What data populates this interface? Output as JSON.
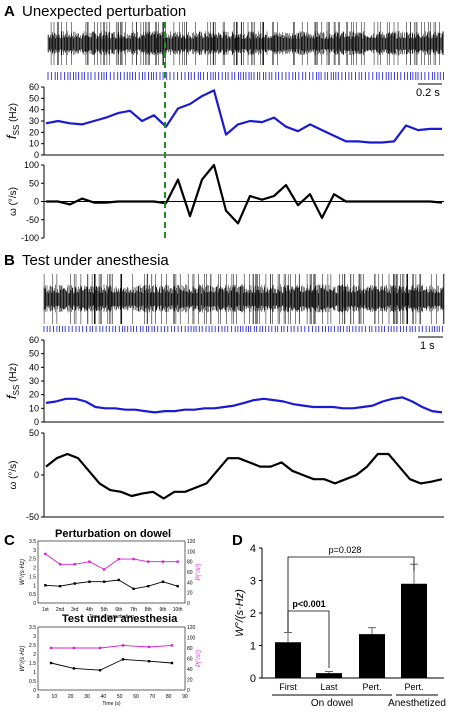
{
  "panels": {
    "a": {
      "letter": "A",
      "title": "Unexpected perturbation",
      "scalebar": "0.2 s"
    },
    "b": {
      "letter": "B",
      "title": "Test under anesthesia",
      "scalebar": "1 s"
    },
    "c": {
      "letter": "C",
      "title_top": "Perturbation on dowel",
      "title_bottom": "Test under anesthesia"
    },
    "d": {
      "letter": "D"
    }
  },
  "colors": {
    "trace": "#000000",
    "spikes": "#2b2bd6",
    "freq": "#1a1ad4",
    "velocity": "#000000",
    "perturbation": "#1f8f1f",
    "magenta": "#d41fd4"
  },
  "chart_data": [
    {
      "id": "A-freq",
      "type": "line",
      "ylabel": "f_SS (Hz)",
      "ylabel_main": "f",
      "ylabel_sub": "SS",
      "ylabel_unit": " (Hz)",
      "ylim": [
        0,
        60
      ],
      "yticks": [
        0,
        10,
        20,
        30,
        40,
        50,
        60
      ],
      "series": [
        {
          "values": [
            28,
            30,
            28,
            27,
            30,
            33,
            37,
            39,
            30,
            35,
            25,
            41,
            45,
            52,
            57,
            18,
            27,
            30,
            29,
            33,
            25,
            21,
            27,
            22,
            17,
            12,
            12,
            11,
            11,
            12,
            26,
            22,
            23,
            23
          ]
        }
      ]
    },
    {
      "id": "A-velocity",
      "type": "line",
      "ylabel": "ω (°/s)",
      "ylim": [
        -100,
        100
      ],
      "yticks": [
        -100,
        -50,
        0,
        50,
        100
      ],
      "series": [
        {
          "values": [
            0,
            0,
            -8,
            8,
            -3,
            -3,
            0,
            0,
            0,
            0,
            -5,
            60,
            -40,
            60,
            100,
            -25,
            -60,
            15,
            5,
            15,
            45,
            -10,
            20,
            -45,
            20,
            0,
            0,
            0,
            0,
            0,
            0,
            0,
            0,
            -3
          ]
        }
      ]
    },
    {
      "id": "B-freq",
      "type": "line",
      "ylabel": "f_SS (Hz)",
      "ylabel_main": "f",
      "ylabel_sub": "SS",
      "ylabel_unit": " (Hz)",
      "ylim": [
        0,
        60
      ],
      "yticks": [
        0,
        10,
        20,
        30,
        40,
        50,
        60
      ],
      "series": [
        {
          "values": [
            14,
            15,
            17,
            17,
            15,
            11,
            10,
            10,
            9,
            9,
            8,
            7,
            8,
            8,
            9,
            9,
            10,
            10,
            11,
            12,
            14,
            16,
            17,
            16,
            15,
            13,
            12,
            11,
            11,
            11,
            10,
            10,
            11,
            12,
            15,
            17,
            18,
            15,
            11,
            8,
            7
          ]
        }
      ]
    },
    {
      "id": "B-velocity",
      "type": "line",
      "ylabel": "ω (°/s)",
      "ylim": [
        -50,
        50
      ],
      "yticks": [
        -50,
        0,
        50
      ],
      "series": [
        {
          "values": [
            10,
            20,
            25,
            20,
            5,
            -10,
            -18,
            -20,
            -25,
            -22,
            -20,
            -28,
            -20,
            -20,
            -15,
            -10,
            5,
            20,
            20,
            15,
            10,
            10,
            15,
            5,
            0,
            -5,
            -5,
            -10,
            -5,
            0,
            10,
            25,
            25,
            10,
            -5,
            -10,
            -8,
            -5
          ]
        }
      ]
    },
    {
      "id": "C-top",
      "type": "line",
      "title": "Perturbation on dowel",
      "xlabel": "Time of perturbation",
      "ylabel": "W°/(s·Hz)",
      "y2label": "P(°/s²)",
      "categories": [
        "1st",
        "2nd",
        "3rd",
        "4th",
        "5th",
        "6th",
        "7th",
        "8th",
        "9th",
        "10th"
      ],
      "ylim": [
        0,
        3.5
      ],
      "yticks": [
        0,
        0.5,
        1,
        1.5,
        2,
        2.5,
        3,
        3.5
      ],
      "y2lim": [
        0,
        120
      ],
      "y2ticks": [
        0,
        20,
        40,
        60,
        80,
        100,
        120
      ],
      "series": [
        {
          "axis": "left",
          "color": "black",
          "values": [
            1.0,
            0.95,
            1.1,
            1.2,
            1.2,
            1.3,
            0.8,
            0.95,
            1.2,
            0.95
          ]
        },
        {
          "axis": "right",
          "color": "magenta",
          "values": [
            95,
            75,
            75,
            80,
            65,
            85,
            85,
            80,
            80,
            80
          ]
        }
      ]
    },
    {
      "id": "C-bottom",
      "type": "line",
      "title": "Test under anesthesia",
      "xlabel": "Time (s)",
      "ylabel": "W°/(s·Hz)",
      "y2label": "P(°/s²)",
      "xlim": [
        0,
        90
      ],
      "xticks": [
        0,
        10,
        20,
        30,
        40,
        50,
        60,
        70,
        80,
        90
      ],
      "ylim": [
        0,
        3.5
      ],
      "yticks": [
        0,
        0.5,
        1,
        1.5,
        2,
        2.5,
        3,
        3.5
      ],
      "y2lim": [
        0,
        120
      ],
      "y2ticks": [
        0,
        20,
        40,
        60,
        80,
        100,
        120
      ],
      "series": [
        {
          "axis": "left",
          "color": "black",
          "x": [
            8,
            22,
            38,
            52,
            68,
            82
          ],
          "values": [
            1.5,
            1.2,
            1.1,
            1.7,
            1.6,
            1.5
          ]
        },
        {
          "axis": "right",
          "color": "magenta",
          "x": [
            8,
            22,
            38,
            52,
            68,
            82
          ],
          "values": [
            80,
            80,
            80,
            85,
            82,
            85
          ]
        }
      ]
    },
    {
      "id": "D",
      "type": "bar",
      "ylabel": "W°/(s·Hz)",
      "ylim": [
        0,
        4
      ],
      "yticks": [
        0,
        1,
        2,
        3,
        4
      ],
      "categories": [
        "First",
        "Last",
        "Pert.",
        "Pert."
      ],
      "values": [
        1.1,
        0.15,
        1.35,
        2.9
      ],
      "errors": [
        0.3,
        0.05,
        0.2,
        0.6
      ],
      "groups": [
        "On dowel",
        "Anesthetized"
      ],
      "annotations": [
        "p<0.001",
        "p=0.028"
      ]
    }
  ]
}
